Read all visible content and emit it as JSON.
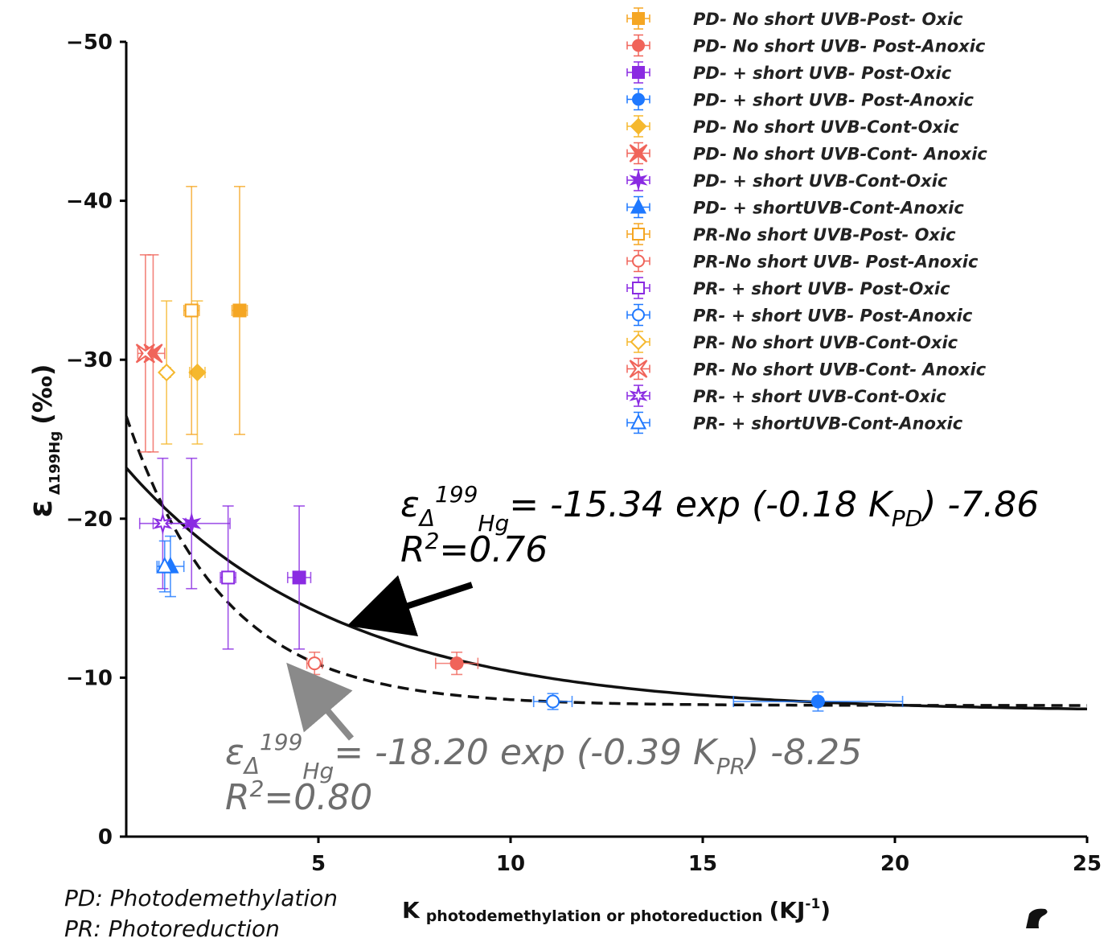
{
  "chart_data": {
    "type": "scatter",
    "ylabel": "ε",
    "ylabel_sub": "Δ199Hg",
    "ylabel_unit": "(‰)",
    "xlabel": "K",
    "xlabel_sub": "photodemethylation or photoreduction",
    "xlabel_unit": "(KJ",
    "xlabel_unit_sup": "-1",
    "xlabel_unit_close": ")",
    "xlim": [
      0,
      25
    ],
    "ylim": [
      0,
      -50
    ],
    "x_ticks": [
      "5",
      "10",
      "15",
      "20",
      "25"
    ],
    "y_ticks": [
      "−50",
      "−40",
      "−30",
      "−20",
      "−10",
      "0"
    ],
    "x_tick_values": [
      5,
      10,
      15,
      20,
      25
    ],
    "y_tick_values": [
      -50,
      -40,
      -30,
      -20,
      -10,
      0
    ],
    "legend_position": "top-right",
    "series": [
      {
        "name": "PD- No short UVB-Post- Oxic",
        "color": "#F5A623",
        "marker": "square",
        "filled": true,
        "points": [
          {
            "x": 2.95,
            "y": -33.1,
            "yerr": 7.8,
            "xerr": 0.2
          }
        ]
      },
      {
        "name": "PD- No short UVB- Post-Anoxic",
        "color": "#F0645A",
        "marker": "circle",
        "filled": true,
        "points": [
          {
            "x": 8.6,
            "y": -10.9,
            "yerr": 0.7,
            "xerr": 0.55
          }
        ]
      },
      {
        "name": "PD- + short UVB- Post-Oxic",
        "color": "#8A2BE2",
        "marker": "square",
        "filled": true,
        "points": [
          {
            "x": 4.5,
            "y": -16.3,
            "yerr": 4.5,
            "xerr": 0.3
          }
        ]
      },
      {
        "name": "PD- + short UVB- Post-Anoxic",
        "color": "#1E78FF",
        "marker": "circle",
        "filled": true,
        "points": [
          {
            "x": 18.0,
            "y": -8.5,
            "yerr": 0.6,
            "xerr": 2.2
          }
        ]
      },
      {
        "name": "PD- No short UVB-Cont-Oxic",
        "color": "#F5B82E",
        "marker": "diamond",
        "filled": true,
        "points": [
          {
            "x": 1.85,
            "y": -29.2,
            "yerr": 4.5,
            "xerr": 0.2
          }
        ]
      },
      {
        "name": "PD- No short UVB-Cont- Anoxic",
        "color": "#F0645A",
        "marker": "star4",
        "filled": true,
        "points": [
          {
            "x": 0.7,
            "y": -30.4,
            "yerr": 6.2,
            "xerr": 0.3
          }
        ]
      },
      {
        "name": "PD- + short UVB-Cont-Oxic",
        "color": "#8A2BE2",
        "marker": "star",
        "filled": true,
        "points": [
          {
            "x": 1.7,
            "y": -19.7,
            "yerr": 4.1,
            "xerr": 1.0
          }
        ]
      },
      {
        "name": "PD- + shortUVB-Cont-Anoxic",
        "color": "#1E78FF",
        "marker": "triangle",
        "filled": true,
        "points": [
          {
            "x": 1.15,
            "y": -17.0,
            "yerr": 1.9,
            "xerr": 0.35
          }
        ]
      },
      {
        "name": "PR-No short UVB-Post- Oxic",
        "color": "#F5A623",
        "marker": "square",
        "filled": false,
        "points": [
          {
            "x": 1.7,
            "y": -33.1,
            "yerr": 7.8,
            "xerr": 0.2
          }
        ]
      },
      {
        "name": "PR-No short UVB- Post-Anoxic",
        "color": "#F0645A",
        "marker": "circle",
        "filled": false,
        "points": [
          {
            "x": 4.9,
            "y": -10.9,
            "yerr": 0.7,
            "xerr": 0.2
          }
        ]
      },
      {
        "name": "PR- + short UVB- Post-Oxic",
        "color": "#8A2BE2",
        "marker": "square",
        "filled": false,
        "points": [
          {
            "x": 2.65,
            "y": -16.3,
            "yerr": 4.5,
            "xerr": 0.2
          }
        ]
      },
      {
        "name": "PR- + short UVB- Post-Anoxic",
        "color": "#1E78FF",
        "marker": "circle",
        "filled": false,
        "points": [
          {
            "x": 11.1,
            "y": -8.5,
            "yerr": 0.5,
            "xerr": 0.5
          }
        ]
      },
      {
        "name": "PR- No short UVB-Cont-Oxic",
        "color": "#F5B82E",
        "marker": "diamond",
        "filled": false,
        "points": [
          {
            "x": 1.05,
            "y": -29.2,
            "yerr": 4.5,
            "xerr": 0.1
          }
        ]
      },
      {
        "name": "PR- No short UVB-Cont- Anoxic",
        "color": "#F0645A",
        "marker": "star4",
        "filled": false,
        "points": [
          {
            "x": 0.5,
            "y": -30.4,
            "yerr": 6.2,
            "xerr": 0.2
          }
        ]
      },
      {
        "name": "PR- + short UVB-Cont-Oxic",
        "color": "#8A2BE2",
        "marker": "star",
        "filled": false,
        "points": [
          {
            "x": 0.95,
            "y": -19.7,
            "yerr": 4.1,
            "xerr": 0.6
          }
        ]
      },
      {
        "name": "PR- + shortUVB-Cont-Anoxic",
        "color": "#1E78FF",
        "marker": "triangle",
        "filled": false,
        "points": [
          {
            "x": 1.0,
            "y": -17.0,
            "yerr": 1.6,
            "xerr": 0.15
          }
        ]
      }
    ],
    "fits": [
      {
        "label": "PD",
        "style": "solid",
        "color": "#111111",
        "a": -15.34,
        "b": -0.18,
        "c": -7.86,
        "r2": "0.76"
      },
      {
        "label": "PR",
        "style": "dashed",
        "color": "#111111",
        "a": -18.2,
        "b": -0.39,
        "c": -8.25,
        "r2": "0.80"
      }
    ],
    "annotations": {
      "pd_eq": {
        "eps": "ε",
        "sub1": "Δ",
        "sup": "199",
        "sub2": "Hg",
        "rest": "= -15.34 exp (-0.18 K",
        "k_sub": "PD",
        "close": ") -7.86",
        "r2_label": "R",
        "r2_sup": "2",
        "r2_value": "=0.76",
        "color": "#000000"
      },
      "pr_eq": {
        "eps": "ε",
        "sub1": "Δ",
        "sup": "199",
        "sub2": "Hg",
        "rest": "= -18.20 exp (-0.39 K",
        "k_sub": "PR",
        "close": ") -8.25",
        "r2_label": "R",
        "r2_sup": "2",
        "r2_value": "=0.80",
        "color": "#6e6e6e"
      }
    }
  },
  "footnotes": {
    "pd": "PD: Photodemethylation",
    "pr": "PR: Photoreduction"
  }
}
